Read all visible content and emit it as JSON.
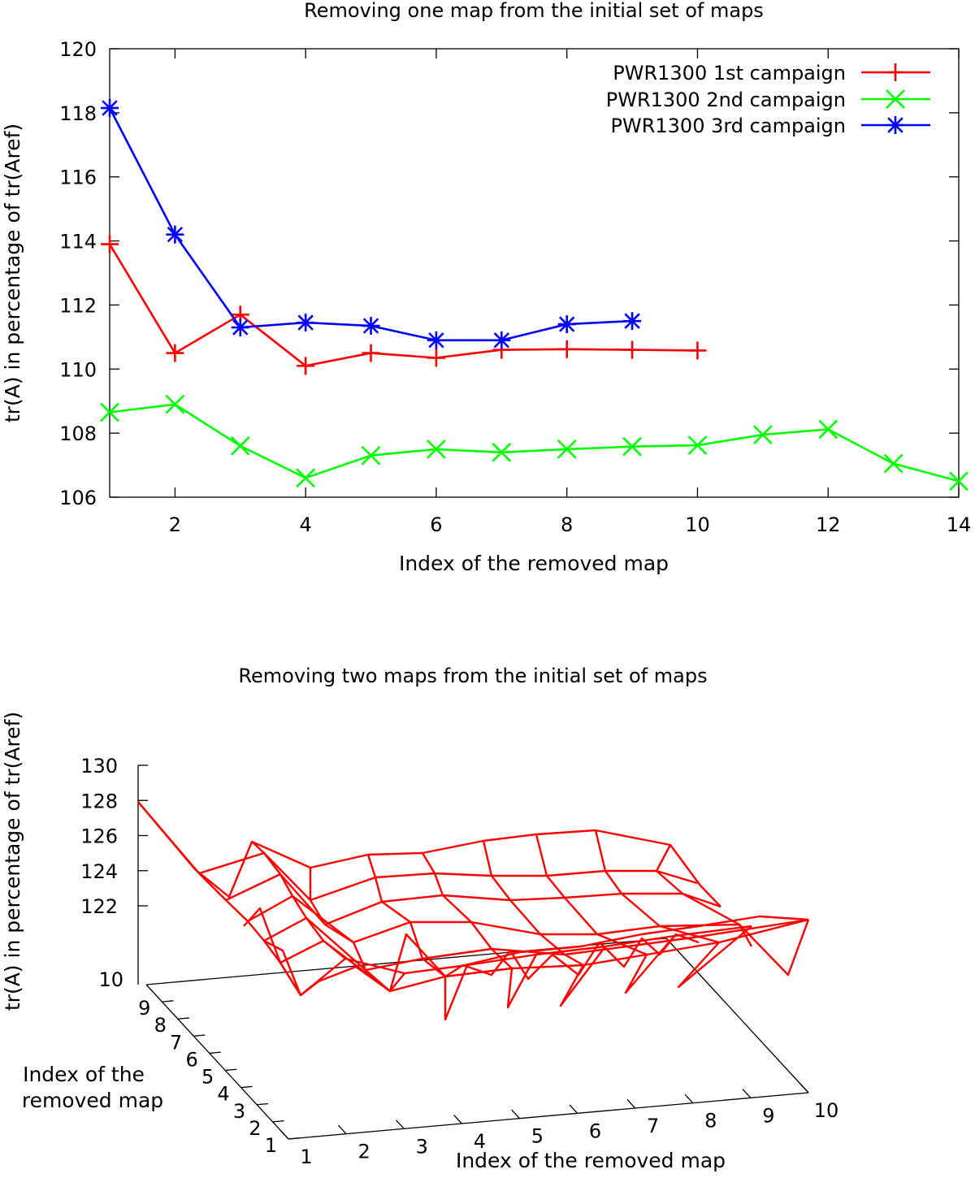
{
  "chart_data": [
    {
      "type": "line",
      "title": "Removing one map from the initial set of maps",
      "xlabel": "Index of the removed map",
      "ylabel": "tr(A) in percentage of tr(Aref)",
      "xlim": [
        1,
        14
      ],
      "ylim": [
        106,
        120
      ],
      "xticks": [
        2,
        4,
        6,
        8,
        10,
        12,
        14
      ],
      "yticks": [
        106,
        108,
        110,
        112,
        114,
        116,
        118,
        120
      ],
      "grid": false,
      "legend": "top-right",
      "series": [
        {
          "name": "PWR1300 1st campaign",
          "color": "#ff0000",
          "marker": "plus",
          "x": [
            1,
            2,
            3,
            4,
            5,
            6,
            7,
            8,
            9,
            10
          ],
          "y": [
            113.9,
            110.5,
            111.7,
            110.1,
            110.5,
            110.35,
            110.6,
            110.62,
            110.6,
            110.58
          ]
        },
        {
          "name": "PWR1300 2nd campaign",
          "color": "#00ff00",
          "marker": "cross",
          "x": [
            1,
            2,
            3,
            4,
            5,
            6,
            7,
            8,
            9,
            10,
            11,
            12,
            13,
            14
          ],
          "y": [
            108.65,
            108.9,
            107.6,
            106.6,
            107.3,
            107.5,
            107.4,
            107.5,
            107.58,
            107.62,
            107.95,
            108.12,
            107.05,
            106.5
          ]
        },
        {
          "name": "PWR1300 3rd campaign",
          "color": "#0000ff",
          "marker": "star",
          "x": [
            1,
            2,
            3,
            4,
            5,
            6,
            7,
            8,
            9
          ],
          "y": [
            118.15,
            114.2,
            111.3,
            111.45,
            111.35,
            110.9,
            110.9,
            111.4,
            111.5
          ]
        }
      ]
    },
    {
      "type": "surface",
      "title": "Removing two maps from the initial set of maps",
      "xlabel": "Index of the removed map",
      "ylabel": "Index of the removed map",
      "zlabel": "tr(A) in percentage of tr(Aref)",
      "xticks": [
        1,
        2,
        3,
        4,
        5,
        6,
        7,
        8,
        9,
        10
      ],
      "yticks": [
        1,
        2,
        3,
        4,
        5,
        6,
        7,
        8,
        9,
        10
      ],
      "zticks": [
        122,
        124,
        126,
        128,
        130
      ],
      "ylabel_lines": [
        "Index of the",
        "removed map"
      ],
      "color": "#ff0000",
      "zlim": [
        112,
        130
      ]
    }
  ]
}
